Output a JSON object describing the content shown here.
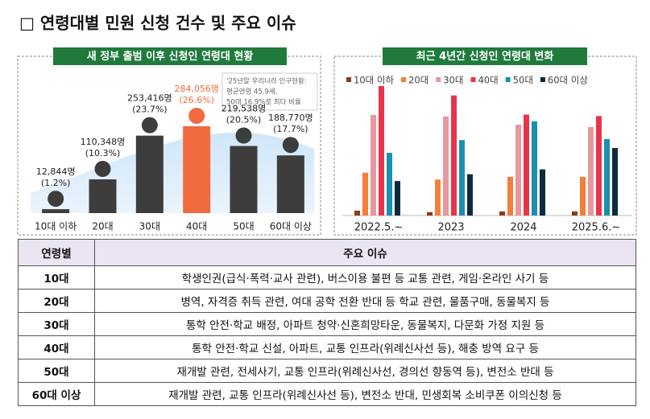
{
  "title": "□ 연령대별 민원 신청 건수 및 주요 이슈",
  "chart_data": [
    {
      "type": "bar",
      "title": "새 정부 출범 이후 신청인 연령대 현황",
      "categories": [
        "10대 이하",
        "20대",
        "30대",
        "40대",
        "50대",
        "60대 이상"
      ],
      "values": [
        12844,
        110348,
        253416,
        284056,
        219538,
        188770
      ],
      "value_labels": [
        "12,844명",
        "110,348명",
        "253,416명",
        "284,056명",
        "219,538명",
        "188,770명"
      ],
      "shares": [
        1.2,
        10.3,
        23.7,
        26.6,
        20.5,
        17.7
      ],
      "share_labels": [
        "(1.2%)",
        "(10.3%)",
        "(23.7%)",
        "(26.6%)",
        "(20.5%)",
        "(17.7%)"
      ],
      "colors": [
        "#3d3d3d",
        "#3d3d3d",
        "#3d3d3d",
        "#f26a3f",
        "#3d3d3d",
        "#3d3d3d"
      ],
      "annotation": [
        "'25년말 우리나라 인구현황:",
        "평균연령 45.9세,",
        "50대 16.9%로 최다 비율"
      ]
    },
    {
      "type": "grouped-bar",
      "title": "최근 4년간 신청인 연령대 변화",
      "categories": [
        "2022.5.~",
        "2023",
        "2024",
        "2025.6.~"
      ],
      "series": [
        {
          "name": "10대 이하",
          "color": "#8b3a1e",
          "values": [
            1.3,
            0.9,
            1.1,
            1.1
          ]
        },
        {
          "name": "20대",
          "color": "#f47f3a",
          "values": [
            11.4,
            9.6,
            10.3,
            10.3
          ]
        },
        {
          "name": "30대",
          "color": "#e8979c",
          "values": [
            26.8,
            26.4,
            24.2,
            23.6
          ]
        },
        {
          "name": "40대",
          "color": "#e8344a",
          "values": [
            34.5,
            32.0,
            26.9,
            26.5
          ]
        },
        {
          "name": "50대",
          "color": "#1a8fb0",
          "values": [
            16.7,
            20.1,
            25.1,
            20.4
          ]
        },
        {
          "name": "60대 이상",
          "color": "#0d2b3e",
          "values": [
            9.2,
            11.0,
            12.3,
            18.0
          ]
        }
      ]
    }
  ],
  "table": {
    "header": [
      "연령별",
      "주요 이슈"
    ],
    "rows": [
      [
        "10대",
        "학생인권(급식·폭력·교사 관련), 버스이용 불편 등 교통 관련, 게임·온라인 사기 등"
      ],
      [
        "20대",
        "병역, 자격증 취득 관련, 여대 공학 전환 반대 등 학교 관련, 물품구매, 동물복지 등"
      ],
      [
        "30대",
        "통학 안전·학교 배정, 아파트 청약·신혼희망타운, 동물복지, 다문화 가정 지원 등"
      ],
      [
        "40대",
        "통학 안전·학교 신설, 아파트, 교통 인프라(위례신사선 등), 해충 방역 요구 등"
      ],
      [
        "50대",
        "재개발 관련, 전세사기, 교통 인프라(위례신사선, 경의선 향동역 등), 변전소 반대 등"
      ],
      [
        "60대 이상",
        "재개발 관련, 교통 인프라(위례신사선 등), 변전소 반대, 민생회복 소비쿠폰 이의신청 등"
      ]
    ]
  }
}
